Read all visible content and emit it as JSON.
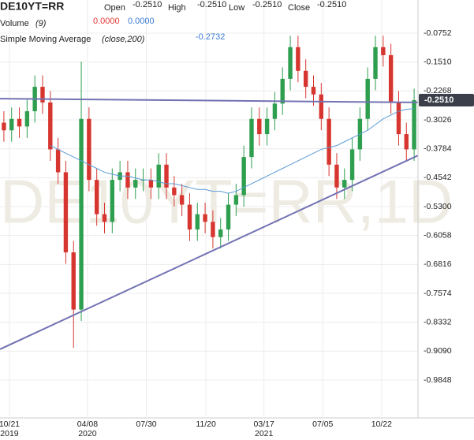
{
  "header": {
    "symbol": "DE10YT=RR",
    "open_label": "Open",
    "open": "-0.2510",
    "high_label": "High",
    "high": "-0.2510",
    "low_label": "Low",
    "low": "-0.2510",
    "close_label": "Close",
    "close": "-0.2510",
    "volume_label": "Volume",
    "volume_param": "(9)",
    "volume_value_1": "0.0000",
    "volume_value_2": "0.0000",
    "sma_label": "Simple Moving Average",
    "sma_param": "(close,200)",
    "sma_value": "-0.2732",
    "watermark": "DE10YT=RR,1D"
  },
  "chart_data": {
    "type": "candlestick",
    "up_color": "#2e9e4f",
    "down_color": "#d6362f",
    "grid": true,
    "xlim": [
      -0.5,
      53.5
    ],
    "ylim": [
      0.0116,
      -1.0799
    ],
    "xticks": [
      {
        "value": 0.72,
        "label": "10/21",
        "year": "2019"
      },
      {
        "value": 10.8,
        "label": "04/08",
        "year": "2020"
      },
      {
        "value": 18.4,
        "label": "07/30"
      },
      {
        "value": 26.1,
        "label": "11/20"
      },
      {
        "value": 33.6,
        "label": "03/17",
        "year": "2021"
      },
      {
        "value": 41.2,
        "label": "07/05"
      },
      {
        "value": 48.8,
        "label": "10/22"
      }
    ],
    "yticks": [
      -0.0752,
      {
        "value": -0.151,
        "label": "-0.1510"
      },
      -0.2268,
      -0.3026,
      -0.3784,
      -0.4542,
      {
        "value": -0.53,
        "label": "-0.5300"
      },
      -0.6058,
      -0.6816,
      -0.7574,
      -0.8332,
      {
        "value": -0.909,
        "label": "-0.9090"
      },
      -0.9848
    ],
    "open": [
      -0.31,
      -0.33,
      -0.3,
      -0.32,
      -0.28,
      -0.216,
      -0.257,
      -0.38,
      -0.44,
      -0.65,
      -0.8,
      -0.3,
      -0.46,
      -0.55,
      -0.57,
      -0.46,
      -0.44,
      -0.48,
      -0.46,
      -0.46,
      -0.48,
      -0.42,
      -0.48,
      -0.5,
      -0.525,
      -0.59,
      -0.55,
      -0.57,
      -0.61,
      -0.59,
      -0.525,
      -0.5,
      -0.4,
      -0.3,
      -0.34,
      -0.3,
      -0.26,
      -0.195,
      -0.112,
      -0.174,
      -0.216,
      -0.236,
      -0.3,
      -0.42,
      -0.48,
      -0.46,
      -0.38,
      -0.3,
      -0.195,
      -0.112,
      -0.133,
      -0.257,
      -0.34,
      -0.38
    ],
    "high": [
      -0.28,
      -0.27,
      -0.27,
      -0.25,
      -0.186,
      -0.186,
      -0.227,
      -0.35,
      -0.41,
      -0.62,
      -0.15,
      -0.27,
      -0.43,
      -0.52,
      -0.43,
      -0.41,
      -0.41,
      -0.43,
      -0.43,
      -0.43,
      -0.39,
      -0.39,
      -0.45,
      -0.47,
      -0.495,
      -0.52,
      -0.52,
      -0.54,
      -0.56,
      -0.495,
      -0.47,
      -0.37,
      -0.27,
      -0.27,
      -0.27,
      -0.23,
      -0.165,
      -0.082,
      -0.082,
      -0.144,
      -0.186,
      -0.206,
      -0.27,
      -0.39,
      -0.43,
      -0.35,
      -0.27,
      -0.165,
      -0.082,
      -0.082,
      -0.103,
      -0.227,
      -0.31,
      -0.221
    ],
    "low": [
      -0.36,
      -0.36,
      -0.35,
      -0.35,
      -0.31,
      -0.287,
      -0.41,
      -0.47,
      -0.68,
      -0.9,
      -0.83,
      -0.49,
      -0.58,
      -0.6,
      -0.6,
      -0.49,
      -0.51,
      -0.51,
      -0.49,
      -0.51,
      -0.51,
      -0.51,
      -0.53,
      -0.555,
      -0.62,
      -0.62,
      -0.6,
      -0.64,
      -0.64,
      -0.62,
      -0.555,
      -0.53,
      -0.43,
      -0.37,
      -0.37,
      -0.33,
      -0.29,
      -0.225,
      -0.204,
      -0.246,
      -0.266,
      -0.33,
      -0.45,
      -0.51,
      -0.51,
      -0.49,
      -0.41,
      -0.33,
      -0.225,
      -0.163,
      -0.287,
      -0.37,
      -0.41,
      -0.41
    ],
    "close": [
      -0.33,
      -0.3,
      -0.32,
      -0.28,
      -0.216,
      -0.257,
      -0.38,
      -0.44,
      -0.65,
      -0.8,
      -0.3,
      -0.46,
      -0.55,
      -0.57,
      -0.46,
      -0.44,
      -0.48,
      -0.46,
      -0.46,
      -0.48,
      -0.42,
      -0.48,
      -0.5,
      -0.525,
      -0.59,
      -0.55,
      -0.57,
      -0.61,
      -0.59,
      -0.525,
      -0.5,
      -0.4,
      -0.3,
      -0.34,
      -0.3,
      -0.26,
      -0.195,
      -0.112,
      -0.174,
      -0.216,
      -0.236,
      -0.3,
      -0.42,
      -0.48,
      -0.46,
      -0.38,
      -0.3,
      -0.195,
      -0.112,
      -0.133,
      -0.257,
      -0.34,
      -0.38,
      -0.251
    ],
    "last_label": "-0.2510",
    "sma": {
      "color": "#5b9bd5",
      "values": [
        null,
        null,
        null,
        null,
        null,
        null,
        -0.37,
        -0.38,
        -0.39,
        -0.4,
        -0.41,
        -0.42,
        -0.43,
        -0.44,
        -0.445,
        -0.45,
        -0.45,
        -0.455,
        -0.46,
        -0.46,
        -0.465,
        -0.47,
        -0.47,
        -0.475,
        -0.48,
        -0.485,
        -0.485,
        -0.49,
        -0.49,
        -0.495,
        -0.49,
        -0.48,
        -0.47,
        -0.46,
        -0.45,
        -0.44,
        -0.43,
        -0.42,
        -0.41,
        -0.4,
        -0.39,
        -0.38,
        -0.375,
        -0.37,
        -0.36,
        -0.35,
        -0.34,
        -0.33,
        -0.315,
        -0.3,
        -0.29,
        -0.28,
        -0.275,
        -0.2732
      ]
    },
    "trendlines": [
      {
        "color": "#7272b4",
        "x": [
          -0.5,
          53.5
        ],
        "y": [
          -0.247,
          -0.257
        ]
      },
      {
        "color": "#7272b4",
        "x": [
          -0.5,
          53.5
        ],
        "y": [
          -0.904,
          -0.396
        ]
      }
    ]
  }
}
